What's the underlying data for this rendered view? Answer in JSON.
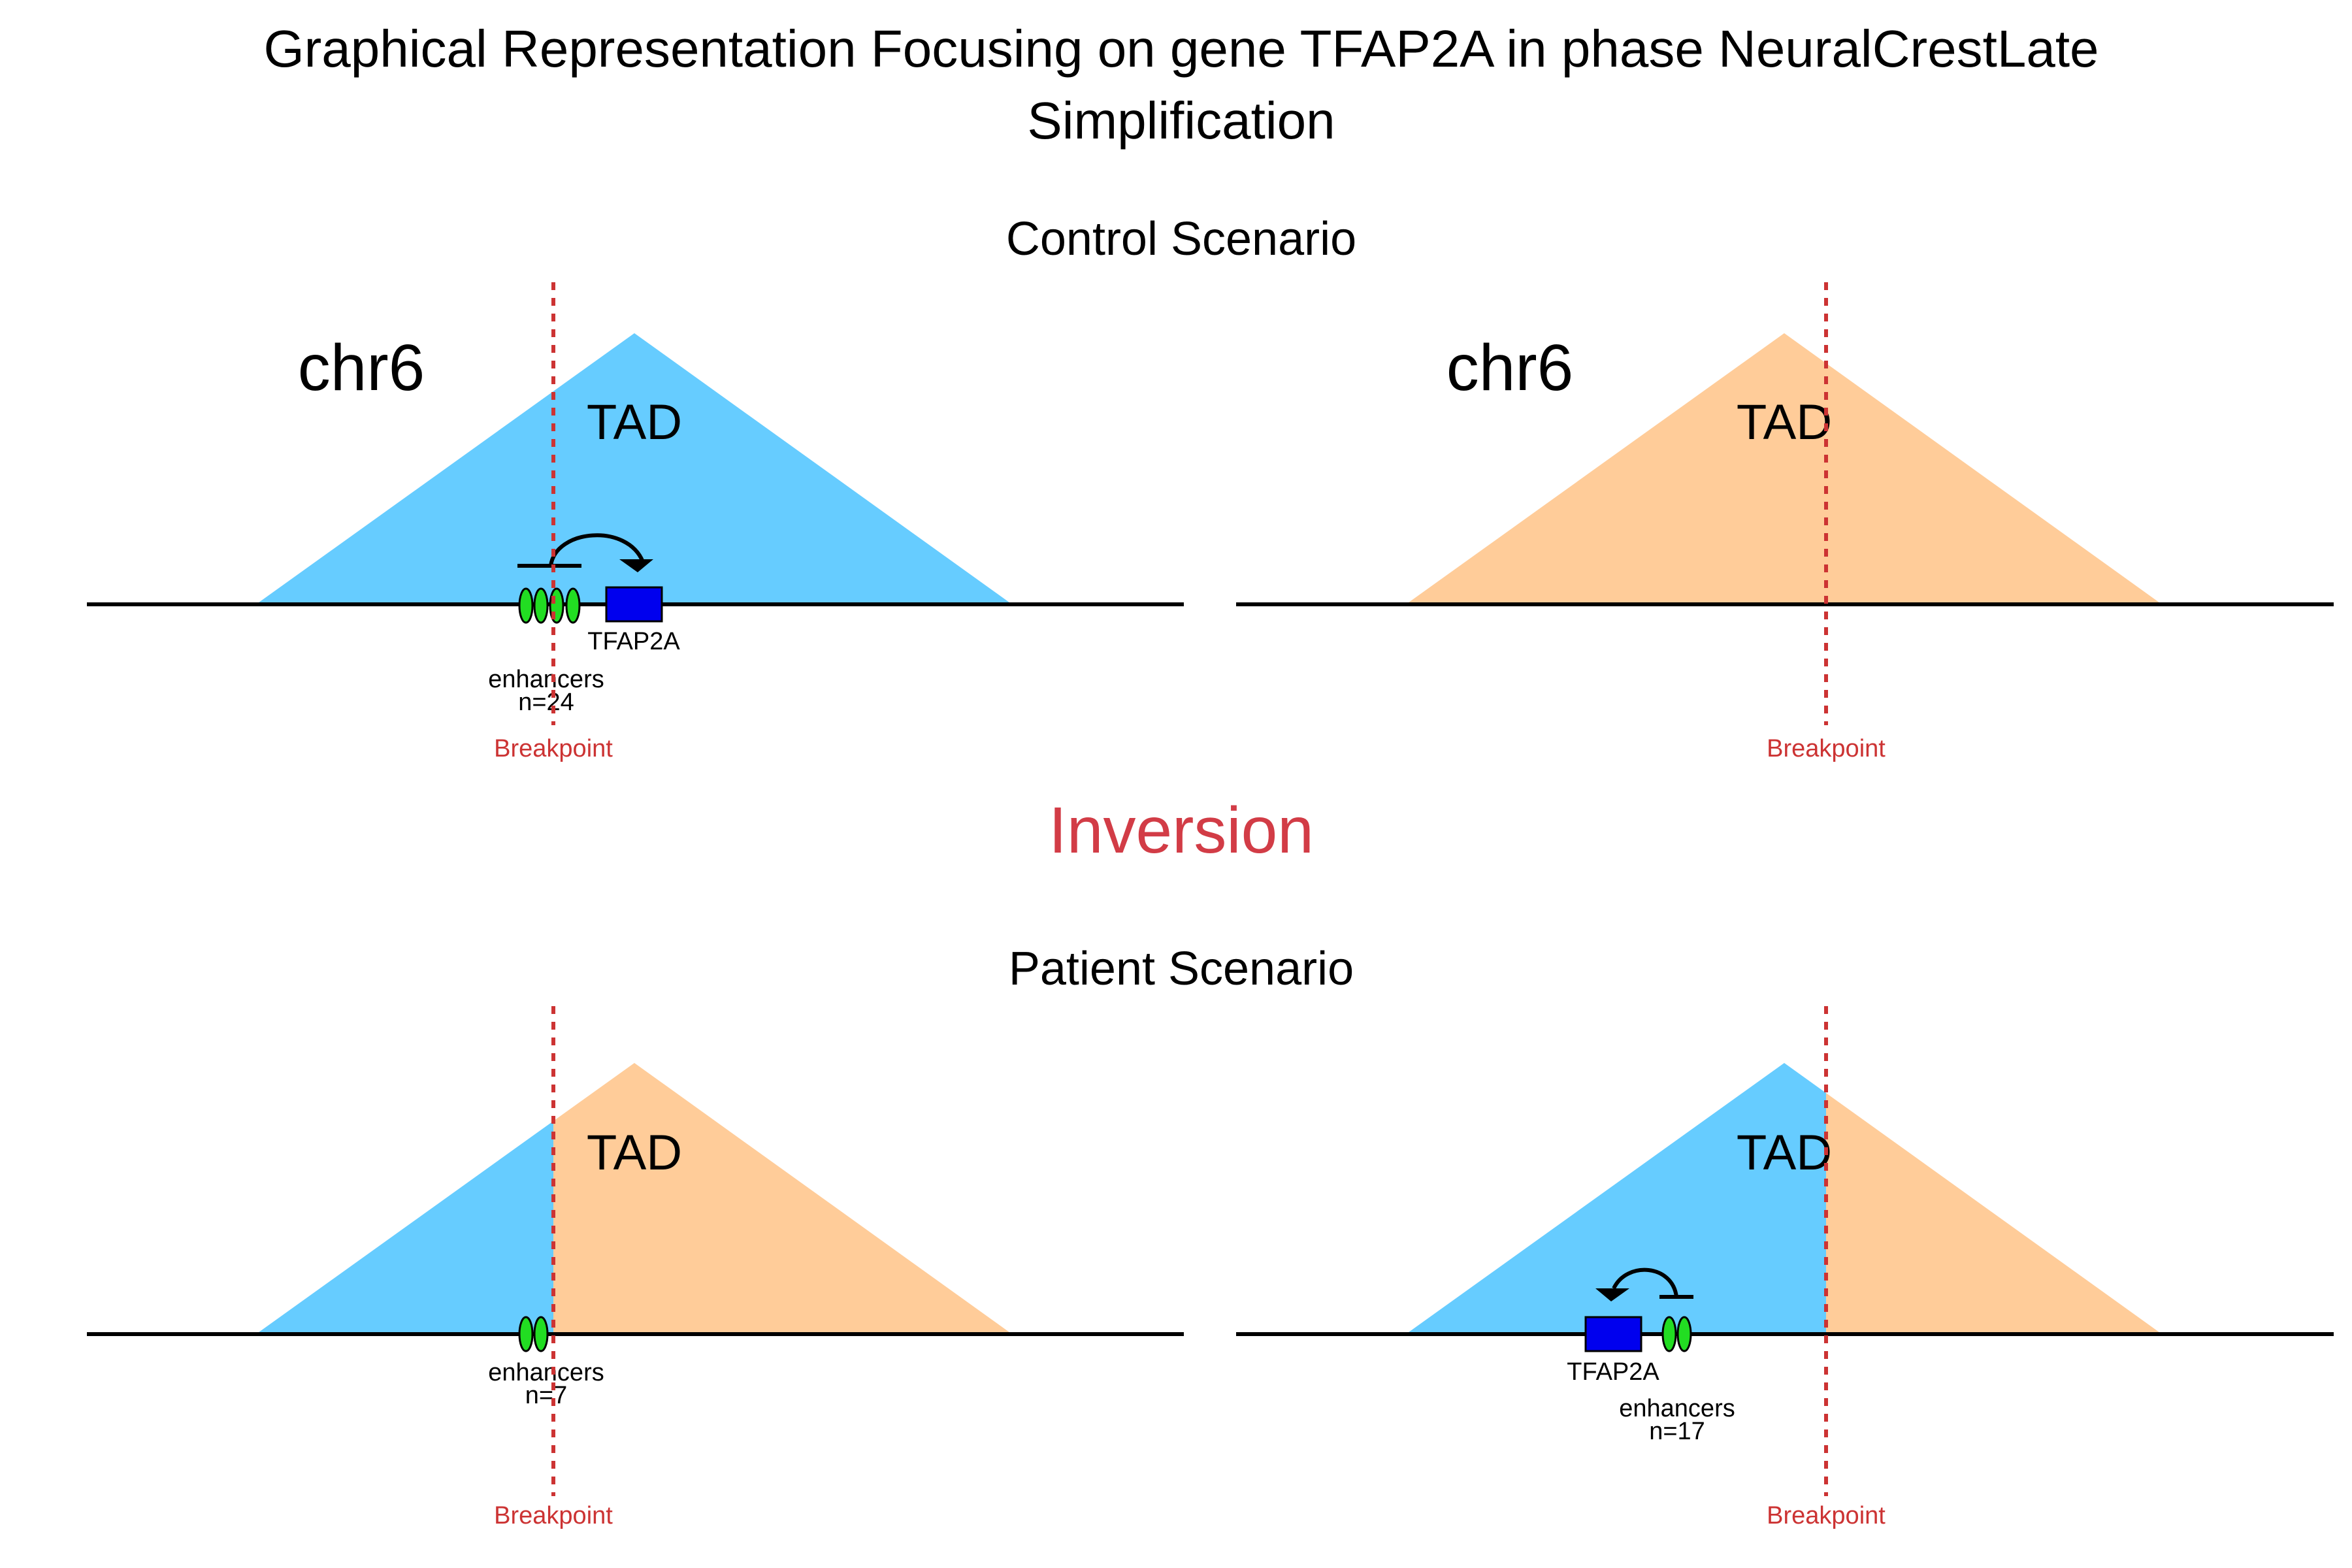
{
  "title": {
    "line1": "Graphical Representation Focusing on gene TFAP2A in phase NeuralCrestLate",
    "line2": "Simplification"
  },
  "colors": {
    "tad_blue": "#66ccff",
    "tad_orange": "#ffcc99",
    "breakpoint_red": "#cc3333",
    "inversion_red": "#d23c46",
    "enhancer_green": "#22dd22",
    "gene_blue": "#0000ee",
    "line_black": "#000000"
  },
  "event_label": "Inversion",
  "breakpoint_label": "Breakpoint",
  "tad_label": "TAD",
  "control": {
    "heading": "Control Scenario",
    "left": {
      "chrom": "chr6",
      "gene": "TFAP2A",
      "enhancers_label": "enhancers",
      "enhancers_count": "n=24"
    },
    "right": {
      "chrom": "chr6"
    }
  },
  "patient": {
    "heading": "Patient Scenario",
    "left": {
      "enhancers_label": "enhancers",
      "enhancers_count": "n=7"
    },
    "right": {
      "gene": "TFAP2A",
      "enhancers_label": "enhancers",
      "enhancers_count": "n=17"
    }
  }
}
